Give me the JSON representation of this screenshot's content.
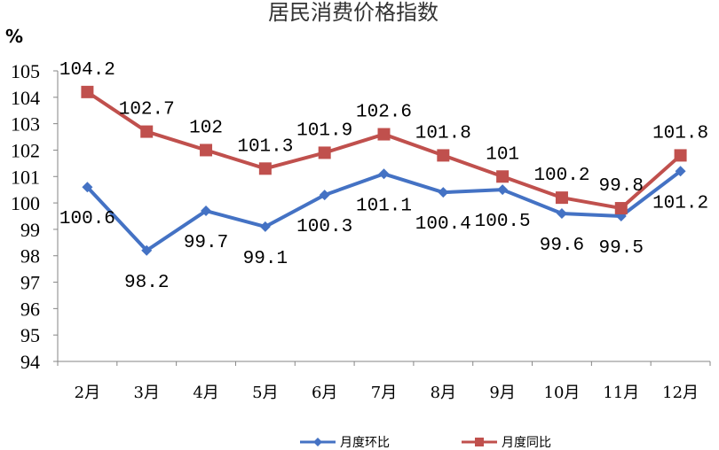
{
  "chart_data": {
    "type": "line",
    "title": "居民消费价格指数",
    "ylabel": "%",
    "xlabel": "",
    "categories": [
      "2月",
      "3月",
      "4月",
      "5月",
      "6月",
      "7月",
      "8月",
      "9月",
      "10月",
      "11月",
      "12月"
    ],
    "ylim": [
      94,
      105
    ],
    "yticks": [
      "94",
      "95",
      "96",
      "97",
      "98",
      "99",
      "100",
      "101",
      "102",
      "103",
      "104",
      "105"
    ],
    "grid": false,
    "legend": "bottom",
    "series": [
      {
        "name": "月度环比",
        "color": "#4472C4",
        "marker": "diamond",
        "values": [
          100.6,
          98.2,
          99.7,
          99.1,
          100.3,
          101.1,
          100.4,
          100.5,
          99.6,
          99.5,
          101.2
        ],
        "labels": [
          "100.6",
          "98.2",
          "99.7",
          "99.1",
          "100.3",
          "101.1",
          "100.4",
          "100.5",
          "99.6",
          "99.5",
          "101.2"
        ]
      },
      {
        "name": "月度同比",
        "color": "#C0504D",
        "marker": "square",
        "values": [
          104.2,
          102.7,
          102,
          101.3,
          101.9,
          102.6,
          101.8,
          101,
          100.2,
          99.8,
          101.8
        ],
        "labels": [
          "104.2",
          "102.7",
          "102",
          "101.3",
          "101.9",
          "102.6",
          "101.8",
          "101",
          "100.2",
          "99.8",
          "101.8"
        ]
      }
    ]
  }
}
